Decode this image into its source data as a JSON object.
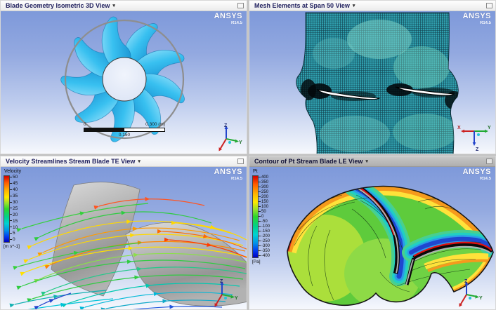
{
  "brand": {
    "name": "ANSYS",
    "version": "R14.5"
  },
  "icons": {
    "view_dropdown": "▾"
  },
  "viewports": {
    "geometry": {
      "title": "Blade Geometry Isometric 3D View"
    },
    "mesh": {
      "title": "Mesh Elements at Span 50 View"
    },
    "streamlines": {
      "title": "Velocity Streamlines Stream Blade TE View"
    },
    "contour": {
      "title": "Contour of Pt Stream Blade LE View"
    }
  },
  "scale_bar": {
    "start": "0",
    "end": "0.300 (m)",
    "mid": "0.150"
  },
  "velocity_legend": {
    "title": "Velocity",
    "ticks": [
      "50",
      "45",
      "40",
      "35",
      "30",
      "25",
      "20",
      "15",
      "10",
      "5",
      "0"
    ],
    "units": "[m s^-1]"
  },
  "pt_legend": {
    "title": "Pt",
    "ticks": [
      "400",
      "350",
      "300",
      "250",
      "200",
      "150",
      "100",
      "50",
      "0",
      "-50",
      "-100",
      "-150",
      "-200",
      "-250",
      "-300",
      "-350",
      "-400"
    ],
    "units": "[Pa]"
  },
  "triad": {
    "x": "X",
    "y": "Y",
    "z": "Z"
  },
  "colors": {
    "blade_blue": "#29b4ea",
    "mesh_teal": "#2f9fae",
    "view_bg_top": "#7e99da",
    "view_bg_bottom": "#f6f8fd",
    "legend_max": "#d40000",
    "legend_min": "#0000c0"
  }
}
